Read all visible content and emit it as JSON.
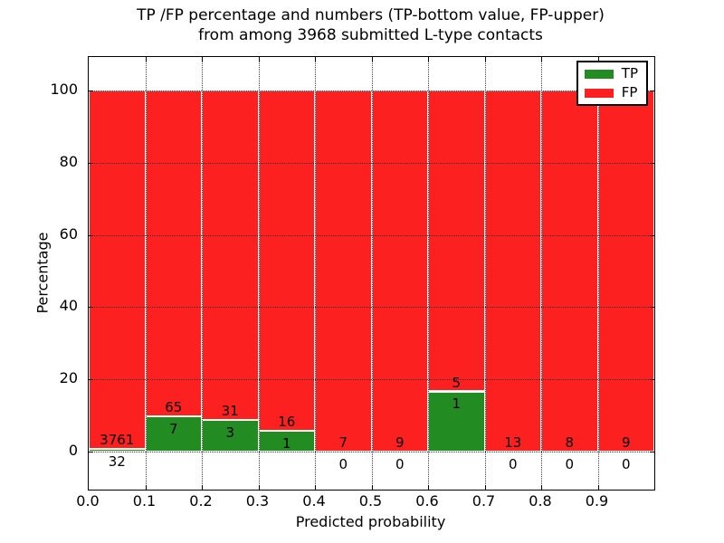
{
  "chart_data": {
    "type": "bar",
    "stacked": true,
    "title_line1": "TP /FP percentage and numbers (TP-bottom value, FP-upper)",
    "title_line2": "from among 3968 submitted L-type contacts",
    "xlabel": "Predicted probability",
    "ylabel": "Percentage",
    "total_contacts": 3968,
    "x_tick_labels": [
      "0.0",
      "0.1",
      "0.2",
      "0.3",
      "0.4",
      "0.5",
      "0.6",
      "0.7",
      "0.8",
      "0.9"
    ],
    "y_tick_labels": [
      "0",
      "20",
      "40",
      "60",
      "80",
      "100"
    ],
    "y_grid_percents": [
      0,
      20,
      40,
      60,
      80,
      100
    ],
    "xlim": [
      0.0,
      1.0
    ],
    "ylim": [
      -10.5,
      109.5
    ],
    "grid": "dotted",
    "legend_position": "upper right",
    "legend": [
      {
        "label": "TP",
        "color": "#228b22"
      },
      {
        "label": "FP",
        "color": "#fc2020"
      }
    ],
    "colors": {
      "tp": "#228b22",
      "fp": "#fc2020"
    },
    "bins": [
      {
        "range": "0.0-0.1",
        "tp": 32,
        "fp": 3761,
        "tp_pct": 0.84,
        "fp_pct": 99.16
      },
      {
        "range": "0.1-0.2",
        "tp": 7,
        "fp": 65,
        "tp_pct": 9.72,
        "fp_pct": 90.28
      },
      {
        "range": "0.2-0.3",
        "tp": 3,
        "fp": 31,
        "tp_pct": 8.82,
        "fp_pct": 91.18
      },
      {
        "range": "0.3-0.4",
        "tp": 1,
        "fp": 16,
        "tp_pct": 5.88,
        "fp_pct": 94.12
      },
      {
        "range": "0.4-0.5",
        "tp": 0,
        "fp": 7,
        "tp_pct": 0,
        "fp_pct": 100
      },
      {
        "range": "0.5-0.6",
        "tp": 0,
        "fp": 9,
        "tp_pct": 0,
        "fp_pct": 100
      },
      {
        "range": "0.6-0.7",
        "tp": 1,
        "fp": 5,
        "tp_pct": 16.67,
        "fp_pct": 83.33
      },
      {
        "range": "0.7-0.8",
        "tp": 0,
        "fp": 13,
        "tp_pct": 0,
        "fp_pct": 100
      },
      {
        "range": "0.8-0.9",
        "tp": 0,
        "fp": 8,
        "tp_pct": 0,
        "fp_pct": 100
      },
      {
        "range": "0.9-1.0",
        "tp": 0,
        "fp": 9,
        "tp_pct": 0,
        "fp_pct": 100
      }
    ]
  }
}
